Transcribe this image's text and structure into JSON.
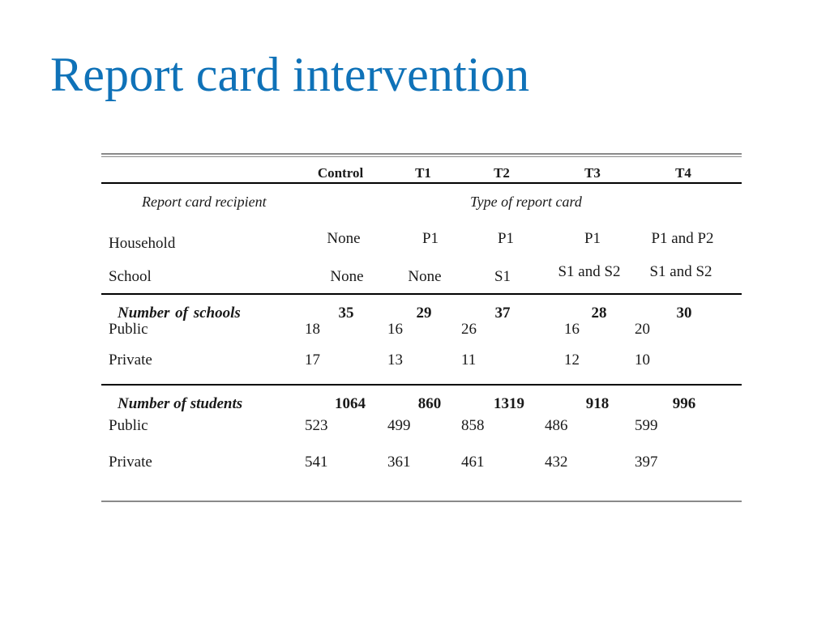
{
  "title": "Report card intervention",
  "colors": {
    "title": "#0f72b8"
  },
  "header": {
    "control": "Control",
    "t1": "T1",
    "t2": "T2",
    "t3": "T3",
    "t4": "T4"
  },
  "subheader": {
    "recipient": "Report card recipient",
    "type": "Type of report card"
  },
  "recipients": {
    "household": {
      "label": "Household",
      "control": "None",
      "t1": "P1",
      "t2": "P1",
      "t3": "P1",
      "t4": "P1 and P2"
    },
    "school": {
      "label": "School",
      "control": "None",
      "t1": "None",
      "t2": "S1",
      "t3": "S1 and S2",
      "t4": "S1 and S2"
    }
  },
  "schools": {
    "label": "Number  of  schools",
    "totals": {
      "control": "35",
      "t1": "29",
      "t2": "37",
      "t3": "28",
      "t4": "30"
    },
    "public": {
      "label": "Public",
      "control": "18",
      "t1": "16",
      "t2": "26",
      "t3": "16",
      "t4": "20"
    },
    "private": {
      "label": "Private",
      "control": "17",
      "t1": "13",
      "t2": "11",
      "t3": "12",
      "t4": "10"
    }
  },
  "students": {
    "label": "Number of students",
    "totals": {
      "control": "1064",
      "t1": "860",
      "t2": "1319",
      "t3": "918",
      "t4": "996"
    },
    "public": {
      "label": "Public",
      "control": "523",
      "t1": "499",
      "t2": "858",
      "t3": "486",
      "t4": "599"
    },
    "private": {
      "label": "Private",
      "control": "541",
      "t1": "361",
      "t2": "461",
      "t3": "432",
      "t4": "397"
    }
  }
}
